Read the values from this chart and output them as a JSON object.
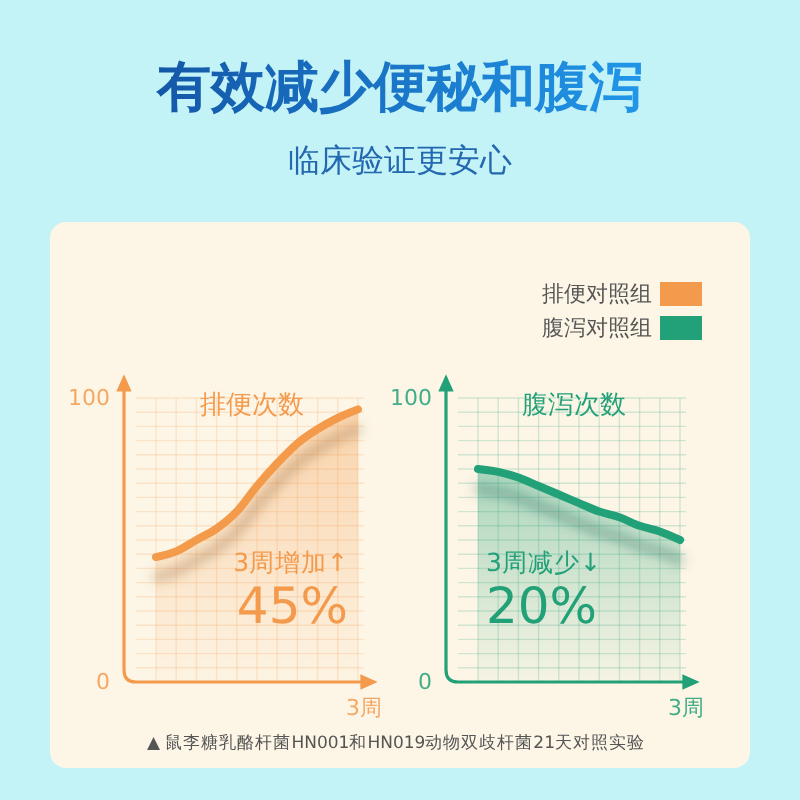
{
  "chart_data": [
    {
      "type": "other",
      "title": "有效减少便秘和腹泻",
      "subtitle": "临床验证更安心",
      "annotations": [
        "▲ 鼠李糖乳酪杆菌HN001和HN019动物双歧杆菌21天对照实验"
      ]
    },
    {
      "type": "area",
      "title": "排便次数",
      "xlabel": "3周",
      "categories": [
        null,
        null,
        null,
        null,
        null,
        null,
        null,
        null,
        null,
        null,
        null
      ],
      "series": [
        {
          "name": "排便对照组",
          "color": "#f39a4c",
          "values": [
            44,
            46,
            50,
            54,
            60,
            69,
            77,
            84,
            89,
            93,
            96
          ]
        }
      ],
      "ylim": [
        0,
        100
      ],
      "yticks": [
        {
          "value": 0,
          "label": "0"
        },
        {
          "value": 5,
          "label": null
        },
        {
          "value": 10,
          "label": null
        },
        {
          "value": 15,
          "label": null
        },
        {
          "value": 20,
          "label": null
        },
        {
          "value": 25,
          "label": null
        },
        {
          "value": 30,
          "label": null
        },
        {
          "value": 35,
          "label": null
        },
        {
          "value": 40,
          "label": null
        },
        {
          "value": 45,
          "label": null
        },
        {
          "value": 50,
          "label": null
        },
        {
          "value": 55,
          "label": null
        },
        {
          "value": 60,
          "label": null
        },
        {
          "value": 65,
          "label": null
        },
        {
          "value": 70,
          "label": null
        },
        {
          "value": 75,
          "label": null
        },
        {
          "value": 80,
          "label": null
        },
        {
          "value": 85,
          "label": null
        },
        {
          "value": 90,
          "label": null
        },
        {
          "value": 95,
          "label": null
        },
        {
          "value": 100,
          "label": "100"
        }
      ],
      "grid": true,
      "annotations": [
        "3周增加↑",
        "45%"
      ],
      "legend": "top right"
    },
    {
      "type": "area",
      "title": "腹泻次数",
      "xlabel": "3周",
      "categories": [
        null,
        null,
        null,
        null,
        null,
        null,
        null,
        null,
        null,
        null,
        null
      ],
      "series": [
        {
          "name": "腹泻对照组",
          "color": "#22a078",
          "values": [
            75,
            74,
            72,
            69,
            66,
            63,
            60,
            58,
            55,
            53,
            50
          ]
        }
      ],
      "ylim": [
        0,
        100
      ],
      "yticks": [
        {
          "value": 0,
          "label": "0"
        },
        {
          "value": 5,
          "label": null
        },
        {
          "value": 10,
          "label": null
        },
        {
          "value": 15,
          "label": null
        },
        {
          "value": 20,
          "label": null
        },
        {
          "value": 25,
          "label": null
        },
        {
          "value": 30,
          "label": null
        },
        {
          "value": 35,
          "label": null
        },
        {
          "value": 40,
          "label": null
        },
        {
          "value": 45,
          "label": null
        },
        {
          "value": 50,
          "label": null
        },
        {
          "value": 55,
          "label": null
        },
        {
          "value": 60,
          "label": null
        },
        {
          "value": 65,
          "label": null
        },
        {
          "value": 70,
          "label": null
        },
        {
          "value": 75,
          "label": null
        },
        {
          "value": 80,
          "label": null
        },
        {
          "value": 85,
          "label": null
        },
        {
          "value": 90,
          "label": null
        },
        {
          "value": 95,
          "label": null
        },
        {
          "value": 100,
          "label": "100"
        }
      ],
      "grid": true,
      "annotations": [
        "3周减少↓",
        "20%"
      ],
      "legend": "top right"
    }
  ]
}
